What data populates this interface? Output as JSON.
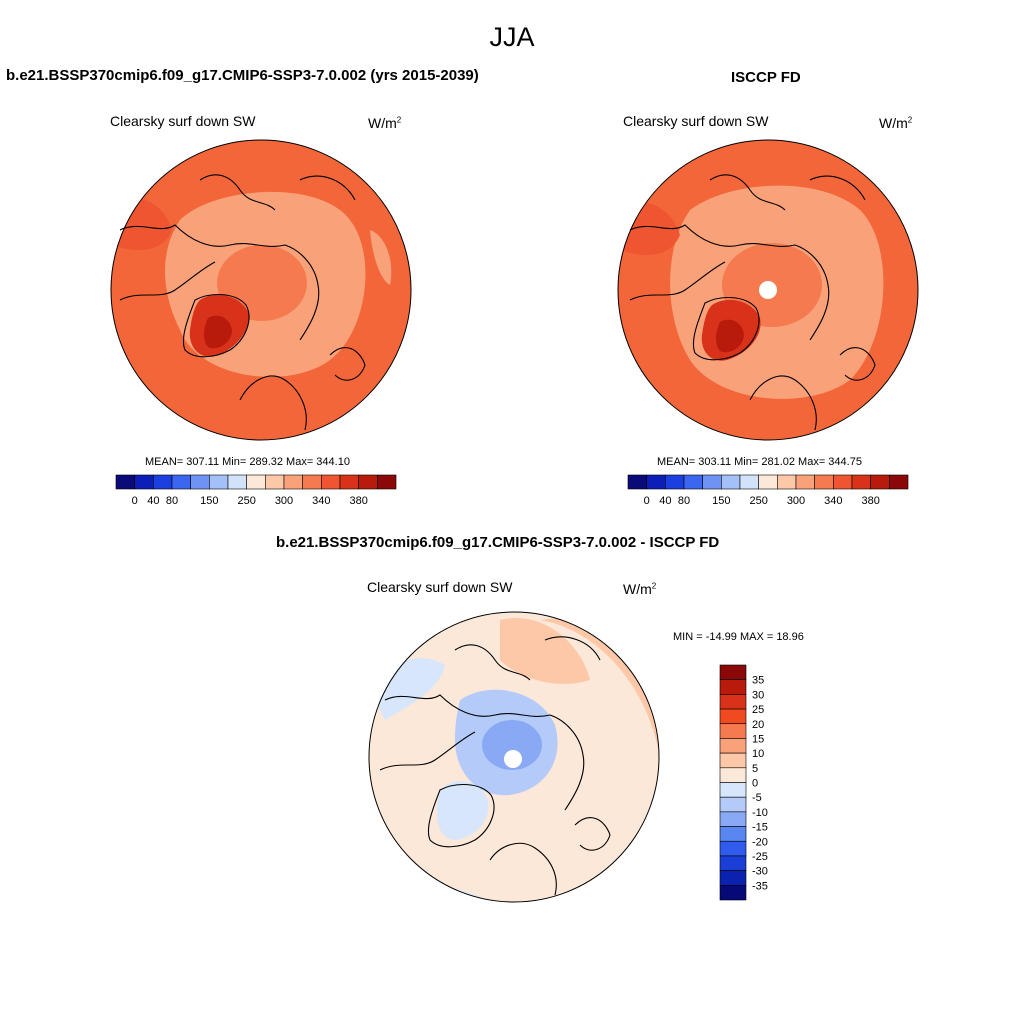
{
  "title": "JJA",
  "panels": [
    {
      "title": "b.e21.BSSP370cmip6.f09_g17.CMIP6-SSP3-7.0.002 (yrs 2015-2039)",
      "variable": "Clearsky surf down SW",
      "units_base": "W/m",
      "units_exp": "2",
      "stats": "MEAN= 307.11  Min= 289.32  Max= 344.10"
    },
    {
      "title": "ISCCP FD",
      "variable": "Clearsky surf down SW",
      "units_base": "W/m",
      "units_exp": "2",
      "stats": "MEAN= 303.11  Min= 281.02  Max= 344.75"
    },
    {
      "title": "b.e21.BSSP370cmip6.f09_g17.CMIP6-SSP3-7.0.002 - ISCCP FD",
      "variable": "Clearsky surf down SW",
      "units_base": "W/m",
      "units_exp": "2",
      "stats": "MIN = -14.99 MAX =  18.96"
    }
  ],
  "colorbar_abs": {
    "colors": [
      "#0a0a78",
      "#0b1fb8",
      "#1b40e0",
      "#3b66f0",
      "#6f93f5",
      "#a4c0f8",
      "#d2e2fb",
      "#fce8d8",
      "#fcc8a8",
      "#f9a27a",
      "#f67a50",
      "#ef5530",
      "#d9321a",
      "#b81a0c",
      "#8b0808"
    ],
    "labels": [
      "0",
      "40",
      "80",
      "150",
      "250",
      "300",
      "340",
      "380"
    ]
  },
  "colorbar_diff": {
    "colors_top_to_bottom": [
      "#8b0808",
      "#b81a0c",
      "#d9321a",
      "#ef4a20",
      "#f67a50",
      "#f9a27a",
      "#fcc8a8",
      "#fce8d8",
      "#d8e6fb",
      "#b4cbf9",
      "#8aa9f5",
      "#5a86f2",
      "#2f5cec",
      "#1a3ed6",
      "#0b22b0",
      "#060a78"
    ],
    "labels": [
      "35",
      "30",
      "25",
      "20",
      "15",
      "10",
      "5",
      "0",
      "-5",
      "-10",
      "-15",
      "-20",
      "-25",
      "-30",
      "-35"
    ]
  },
  "colors": {
    "map_outer": "#f3663a",
    "map_mid": "#f9a27a",
    "map_greenland": "#d9321a",
    "diff_warm": "#fcc8a8",
    "diff_neutral": "#fce8d8",
    "diff_cool": "#b4cbf9",
    "diff_light_cool": "#d8e6fb"
  },
  "chart_data": {
    "type": "heatmap",
    "title": "JJA",
    "panels": [
      {
        "name": "b.e21.BSSP370cmip6.f09_g17.CMIP6-SSP3-7.0.002 (yrs 2015-2039)",
        "mean": 307.11,
        "min": 289.32,
        "max": 344.1,
        "levels": [
          0,
          40,
          80,
          150,
          250,
          300,
          340,
          380
        ]
      },
      {
        "name": "ISCCP FD",
        "mean": 303.11,
        "min": 281.02,
        "max": 344.75,
        "levels": [
          0,
          40,
          80,
          150,
          250,
          300,
          340,
          380
        ]
      },
      {
        "name": "b.e21.BSSP370cmip6.f09_g17.CMIP6-SSP3-7.0.002 - ISCCP FD",
        "min": -14.99,
        "max": 18.96,
        "levels": [
          -35,
          -30,
          -25,
          -20,
          -15,
          -10,
          -5,
          0,
          5,
          10,
          15,
          20,
          25,
          30,
          35
        ]
      }
    ]
  }
}
